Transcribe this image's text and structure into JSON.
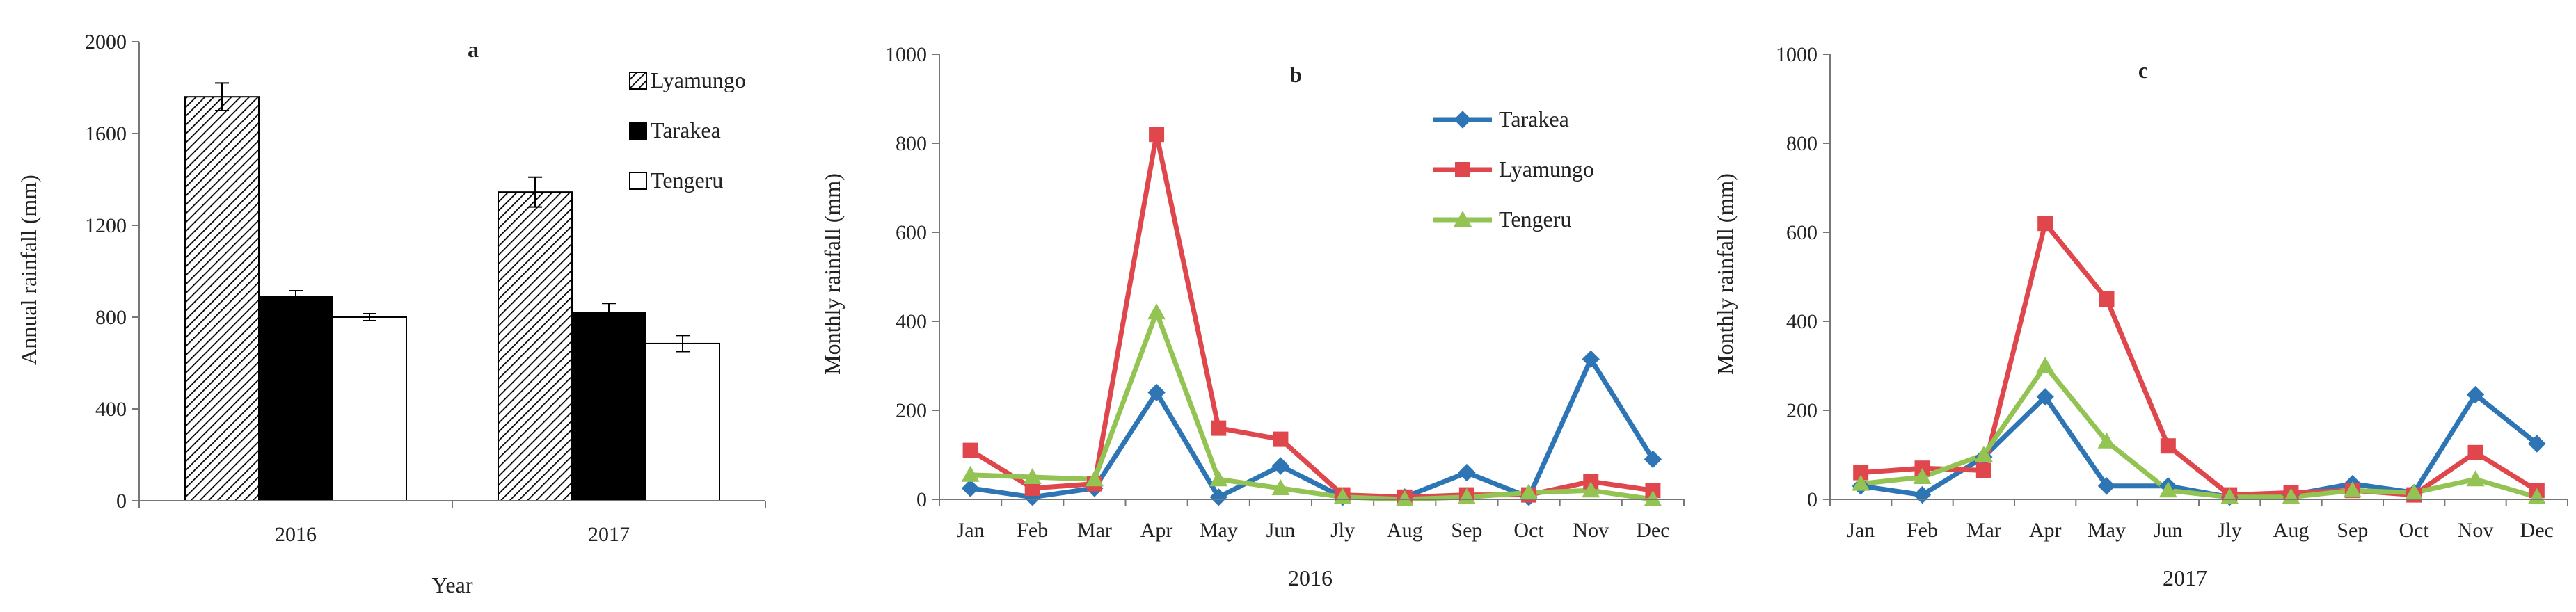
{
  "chart_data": [
    {
      "type": "bar",
      "panel_label": "a",
      "title": "",
      "xlabel": "Year",
      "ylabel": "Annual rainfall (mm)",
      "ylim": [
        0,
        2000
      ],
      "yticks": [
        "0",
        "400",
        "800",
        "1200",
        "1600",
        "2000"
      ],
      "ytick_values": [
        0,
        400,
        800,
        1200,
        1600,
        2000
      ],
      "categories": [
        "2016",
        "2017"
      ],
      "legend_position": "top-right",
      "grid": false,
      "series": [
        {
          "name": "Lyamungo",
          "values": [
            1760,
            1345
          ],
          "errors": [
            60,
            65
          ],
          "fill": "hatched"
        },
        {
          "name": "Tarakea",
          "values": [
            890,
            820
          ],
          "errors": [
            25,
            40
          ],
          "fill": "#000000"
        },
        {
          "name": "Tengeru",
          "values": [
            800,
            685
          ],
          "errors": [
            15,
            35
          ],
          "fill": "#ffffff"
        }
      ]
    },
    {
      "type": "line",
      "panel_label": "b",
      "title": "",
      "xlabel": "2016",
      "ylabel": "Monthly rainfall (mm)",
      "ylim": [
        0,
        1000
      ],
      "yticks": [
        "0",
        "200",
        "400",
        "600",
        "800",
        "1000"
      ],
      "ytick_values": [
        0,
        200,
        400,
        600,
        800,
        1000
      ],
      "categories": [
        "Jan",
        "Feb",
        "Mar",
        "Apr",
        "May",
        "Jun",
        "Jly",
        "Aug",
        "Sep",
        "Oct",
        "Nov",
        "Dec"
      ],
      "legend_position": "top-center",
      "grid": false,
      "series": [
        {
          "name": "Tarakea",
          "color": "#2E75B6",
          "marker": "diamond",
          "values": [
            25,
            5,
            25,
            240,
            5,
            75,
            5,
            5,
            60,
            5,
            315,
            90
          ]
        },
        {
          "name": "Lyamungo",
          "color": "#E0474C",
          "marker": "square",
          "values": [
            110,
            25,
            35,
            820,
            160,
            135,
            10,
            5,
            10,
            10,
            40,
            20
          ]
        },
        {
          "name": "Tengeru",
          "color": "#92C353",
          "marker": "triangle",
          "values": [
            55,
            50,
            45,
            420,
            45,
            25,
            5,
            0,
            5,
            15,
            20,
            0
          ]
        }
      ]
    },
    {
      "type": "line",
      "panel_label": "c",
      "title": "",
      "xlabel": "2017",
      "ylabel": "Monthly rainfall (mm)",
      "ylim": [
        0,
        1000
      ],
      "yticks": [
        "0",
        "200",
        "400",
        "600",
        "800",
        "1000"
      ],
      "ytick_values": [
        0,
        200,
        400,
        600,
        800,
        1000
      ],
      "categories": [
        "Jan",
        "Feb",
        "Mar",
        "Apr",
        "May",
        "Jun",
        "Jly",
        "Aug",
        "Sep",
        "Oct",
        "Nov",
        "Dec"
      ],
      "legend_position": "none",
      "grid": false,
      "series": [
        {
          "name": "Tarakea",
          "color": "#2E75B6",
          "marker": "diamond",
          "values": [
            30,
            10,
            95,
            230,
            30,
            30,
            5,
            10,
            35,
            15,
            235,
            125
          ]
        },
        {
          "name": "Lyamungo",
          "color": "#E0474C",
          "marker": "square",
          "values": [
            60,
            70,
            65,
            620,
            450,
            120,
            10,
            15,
            20,
            10,
            105,
            20
          ]
        },
        {
          "name": "Tengeru",
          "color": "#92C353",
          "marker": "triangle",
          "values": [
            35,
            50,
            100,
            300,
            130,
            20,
            5,
            5,
            20,
            15,
            45,
            5
          ]
        }
      ]
    }
  ]
}
